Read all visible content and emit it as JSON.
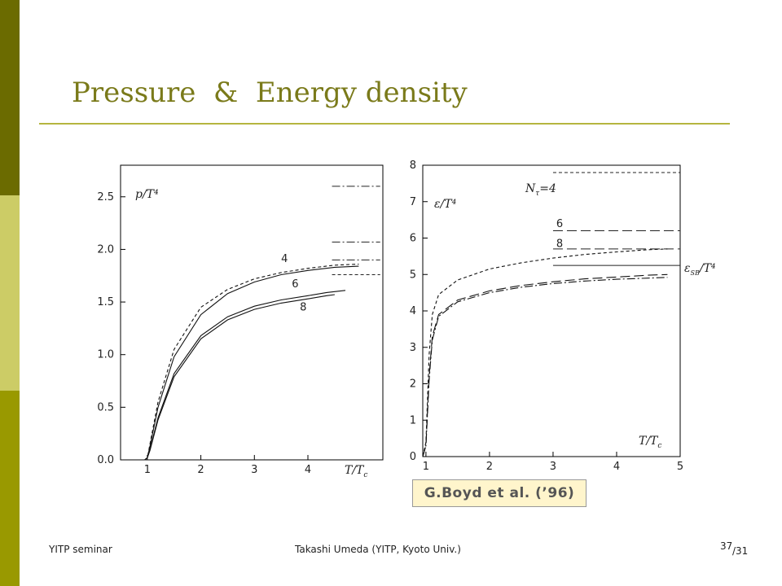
{
  "slide": {
    "title": "Pressure  &  Energy density",
    "reference": "G.Boyd et al. (’96)",
    "footer_left": "YITP seminar",
    "footer_center": "Takashi Umeda (YITP, Kyoto Univ.)",
    "page_number": "37",
    "page_total": "/31",
    "colors": {
      "bar_dark": "#6b6b00",
      "bar_light": "#cccc66",
      "bar_mid": "#999900",
      "title": "#7a7a1a",
      "rule": "#b5b53f"
    }
  },
  "chart_data": [
    {
      "type": "line",
      "ylabel": "p/T⁴",
      "xlabel": "T/Tc",
      "xlim": [
        0.5,
        5.4
      ],
      "ylim": [
        0,
        2.8
      ],
      "xticks": [
        1,
        2,
        3,
        4
      ],
      "yticks": [
        "0.0",
        "0.5",
        "1.0",
        "1.5",
        "2.0",
        "2.5"
      ],
      "grid": false,
      "series": [
        {
          "name": "4",
          "style": "dashed",
          "x": [
            0.95,
            1.0,
            1.05,
            1.2,
            1.5,
            2.0,
            2.5,
            3.0,
            3.5,
            4.0,
            4.5,
            4.95
          ],
          "y": [
            0.0,
            0.02,
            0.15,
            0.55,
            1.05,
            1.45,
            1.62,
            1.72,
            1.78,
            1.82,
            1.85,
            1.86
          ]
        },
        {
          "name": "4",
          "style": "solid",
          "x": [
            0.95,
            1.0,
            1.05,
            1.2,
            1.5,
            2.0,
            2.5,
            3.0,
            3.5,
            4.0,
            4.5,
            4.95
          ],
          "y": [
            0.0,
            0.02,
            0.13,
            0.5,
            0.98,
            1.38,
            1.58,
            1.69,
            1.76,
            1.8,
            1.83,
            1.84
          ]
        },
        {
          "name": "6",
          "style": "solid",
          "x": [
            0.95,
            1.0,
            1.05,
            1.2,
            1.5,
            2.0,
            2.5,
            3.0,
            3.5,
            4.0,
            4.35,
            4.7
          ],
          "y": [
            0.0,
            0.02,
            0.1,
            0.4,
            0.82,
            1.18,
            1.36,
            1.46,
            1.52,
            1.56,
            1.59,
            1.61
          ]
        },
        {
          "name": "8",
          "style": "solid",
          "x": [
            0.95,
            1.0,
            1.05,
            1.2,
            1.5,
            2.0,
            2.5,
            3.0,
            3.5,
            4.0,
            4.35,
            4.5
          ],
          "y": [
            0.0,
            0.02,
            0.09,
            0.38,
            0.79,
            1.15,
            1.33,
            1.43,
            1.49,
            1.53,
            1.56,
            1.57
          ]
        }
      ],
      "limit_lines": [
        {
          "y": 2.6,
          "style": "dash-dot",
          "x": [
            4.45,
            5.35
          ]
        },
        {
          "y": 2.07,
          "style": "dash-dot",
          "x": [
            4.45,
            5.35
          ]
        },
        {
          "y": 1.9,
          "style": "dash-dot",
          "x": [
            4.45,
            5.35
          ]
        },
        {
          "y": 1.76,
          "style": "dashed",
          "x": [
            4.45,
            5.35
          ]
        }
      ],
      "labels": [
        {
          "text": "4",
          "x": 3.5,
          "y": 1.88
        },
        {
          "text": "6",
          "x": 3.7,
          "y": 1.64
        },
        {
          "text": "8",
          "x": 3.85,
          "y": 1.42
        }
      ]
    },
    {
      "type": "line",
      "ylabel": "ε/T⁴",
      "xlabel": "T/Tc",
      "xlim": [
        0.95,
        5
      ],
      "ylim": [
        0,
        8
      ],
      "xticks": [
        1,
        2,
        3,
        4,
        5
      ],
      "yticks": [
        0,
        1,
        2,
        3,
        4,
        5,
        6,
        7,
        8
      ],
      "grid": false,
      "series": [
        {
          "name": "4",
          "style": "dashed",
          "x": [
            0.95,
            1.0,
            1.05,
            1.1,
            1.2,
            1.5,
            2.0,
            2.5,
            3.0,
            3.5,
            4.0,
            4.5,
            4.8
          ],
          "y": [
            0.0,
            0.4,
            2.8,
            3.9,
            4.45,
            4.85,
            5.15,
            5.32,
            5.45,
            5.55,
            5.62,
            5.68,
            5.7
          ]
        },
        {
          "name": "6",
          "style": "long-dashed",
          "x": [
            0.95,
            1.0,
            1.05,
            1.1,
            1.2,
            1.5,
            2.0,
            2.5,
            3.0,
            3.5,
            4.0,
            4.5,
            4.8
          ],
          "y": [
            0.0,
            0.3,
            2.2,
            3.3,
            3.9,
            4.3,
            4.55,
            4.7,
            4.8,
            4.88,
            4.93,
            4.98,
            5.0
          ]
        },
        {
          "name": "8",
          "style": "dash-dot",
          "x": [
            0.95,
            1.0,
            1.05,
            1.1,
            1.2,
            1.5,
            2.0,
            2.5,
            3.0,
            3.5,
            4.0,
            4.5,
            4.8
          ],
          "y": [
            0.0,
            0.3,
            2.1,
            3.2,
            3.85,
            4.25,
            4.5,
            4.65,
            4.75,
            4.82,
            4.87,
            4.9,
            4.92
          ]
        }
      ],
      "limit_lines": [
        {
          "y": 7.8,
          "style": "dashed",
          "x": [
            3.0,
            5.0
          ]
        },
        {
          "y": 6.2,
          "style": "long-dashed",
          "x": [
            3.0,
            5.0
          ]
        },
        {
          "y": 5.7,
          "style": "long-dashed",
          "x": [
            3.0,
            5.0
          ]
        },
        {
          "y": 5.25,
          "style": "solid",
          "x": [
            3.0,
            5.0
          ]
        }
      ],
      "labels": [
        {
          "text": "6",
          "x": 3.05,
          "y": 6.3
        },
        {
          "text": "8",
          "x": 3.05,
          "y": 5.75
        }
      ],
      "annotations": {
        "ntau": "N",
        "ntau_sub": "τ",
        "ntau_rest": "=4",
        "sb_e": "ε",
        "sb_sub": "SB",
        "sb_rest": "/T⁴"
      }
    }
  ]
}
